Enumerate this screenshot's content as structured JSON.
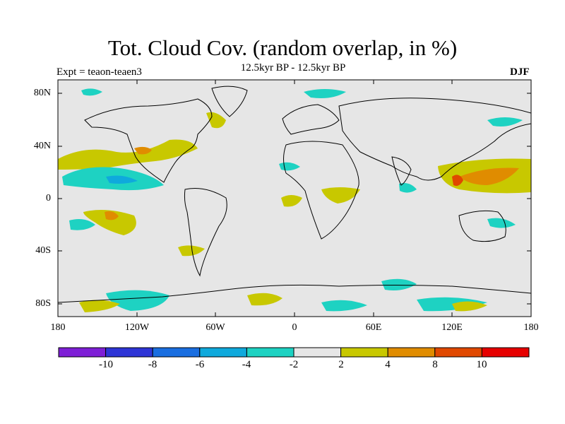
{
  "header": {
    "title": "Tot. Cloud Cov. (random overlap, in %)",
    "subtitle": "12.5kyr BP - 12.5kyr BP",
    "experiment": "Expt = teaon-teaen3",
    "season": "DJF"
  },
  "map": {
    "projection": "cylindrical-equidistant",
    "lon_range": [
      -180,
      180
    ],
    "lat_range": [
      -90,
      90
    ],
    "ocean_land_background": "#e6e6e6",
    "coastline_color": "#000000"
  },
  "axes": {
    "lat_labels": [
      "80N",
      "40N",
      "0",
      "40S",
      "80S"
    ],
    "lon_labels": [
      "180",
      "120W",
      "60W",
      "0",
      "60E",
      "120E",
      "180"
    ]
  },
  "colorbar": {
    "labels": [
      "-10",
      "-8",
      "-6",
      "-4",
      "-2",
      "2",
      "4",
      "8",
      "10"
    ],
    "colors": [
      "#7e1fd6",
      "#2e35d6",
      "#1a6ee0",
      "#0fa9dc",
      "#1ed2c2",
      "#e6e6e6",
      "#c8c800",
      "#e08c00",
      "#e04800",
      "#e60000"
    ]
  },
  "regions": [
    {
      "name": "n-pacific-positive",
      "level": "2-4"
    },
    {
      "name": "california-positive",
      "level": "4-8"
    },
    {
      "name": "tropical-pacific-negative",
      "level": "-4--2"
    },
    {
      "name": "s-pacific-positive",
      "level": "4-8"
    },
    {
      "name": "w-pacific-positive",
      "level": "4-8"
    },
    {
      "name": "philippines-positive",
      "level": "8-10"
    },
    {
      "name": "southern-ocean-negative",
      "level": "-4--2"
    },
    {
      "name": "southern-ocean-positive",
      "level": "2-4"
    }
  ]
}
